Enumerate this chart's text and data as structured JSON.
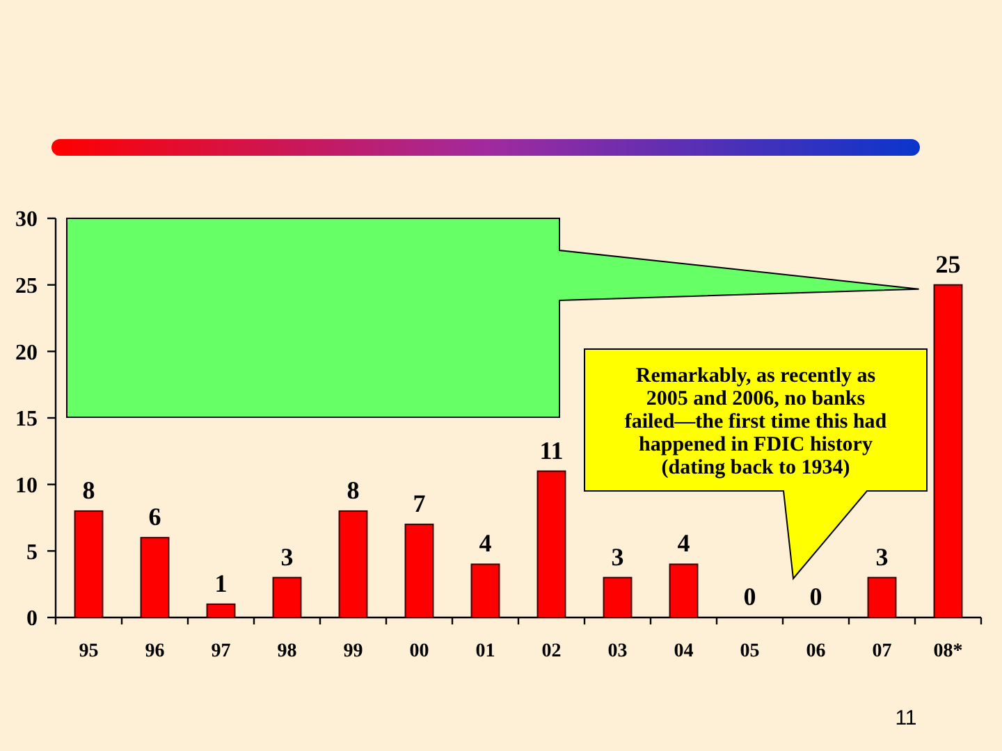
{
  "chart_data": {
    "type": "bar",
    "categories": [
      "95",
      "96",
      "97",
      "98",
      "99",
      "00",
      "01",
      "02",
      "03",
      "04",
      "05",
      "06",
      "07",
      "08*"
    ],
    "values": [
      8,
      6,
      1,
      3,
      8,
      7,
      4,
      11,
      3,
      4,
      0,
      0,
      3,
      25
    ],
    "color": "#ff0000",
    "ylim": [
      0,
      30
    ],
    "yticks": [
      0,
      5,
      10,
      15,
      20,
      25,
      30
    ],
    "data_labels": true,
    "annotations": [
      "Remarkably, as recently as 2005 and 2006, no banks failed—the first time this had happened in FDIC history (dating back to 1934)",
      "11"
    ]
  }
}
